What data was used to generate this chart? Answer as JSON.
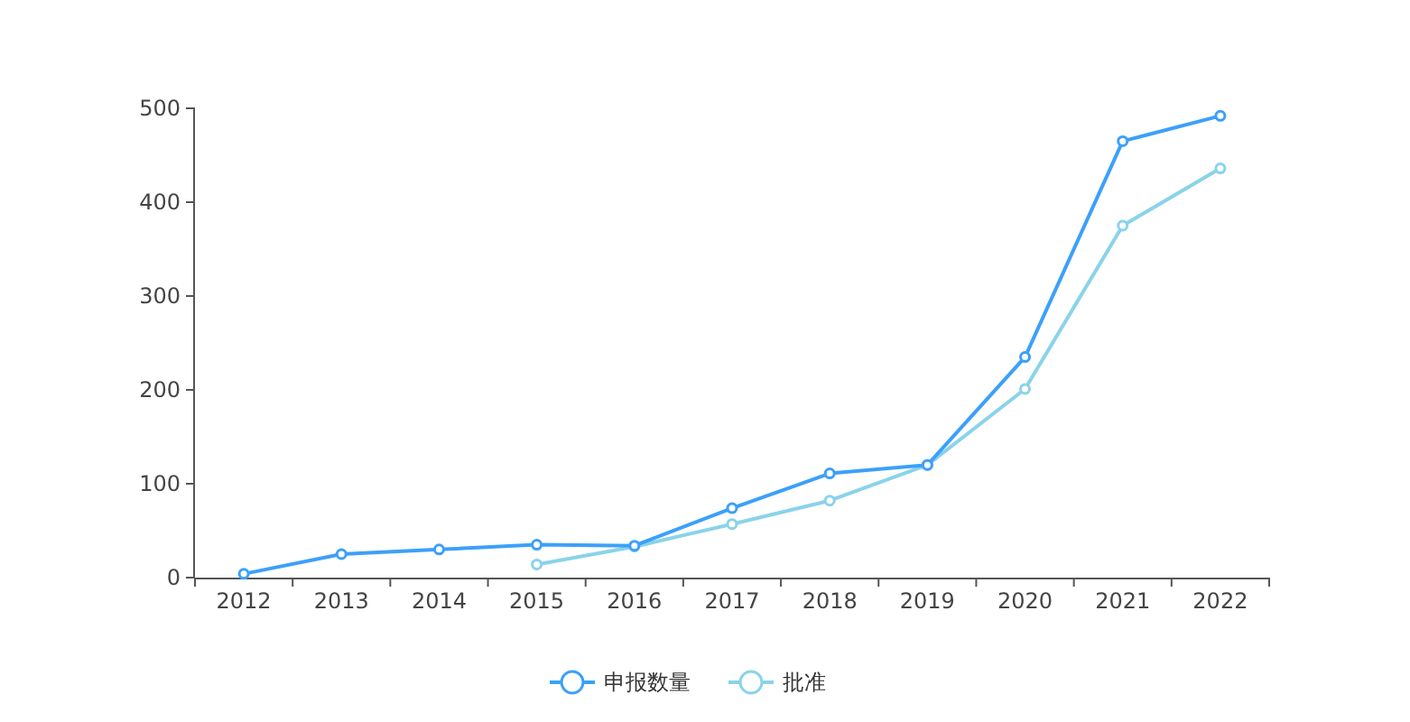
{
  "chart_data": {
    "type": "line",
    "categories": [
      "2012",
      "2013",
      "2014",
      "2015",
      "2016",
      "2017",
      "2018",
      "2019",
      "2020",
      "2021",
      "2022"
    ],
    "series": [
      {
        "name": "申报数量",
        "color": "#3ca0fa",
        "values": [
          4,
          25,
          30,
          35,
          34,
          74,
          111,
          120,
          235,
          465,
          492
        ]
      },
      {
        "name": "批准",
        "color": "#8ad3ea",
        "values": [
          null,
          null,
          null,
          14,
          33,
          57,
          82,
          120,
          201,
          375,
          436
        ]
      }
    ],
    "ylim": [
      0,
      500
    ],
    "yticks": [
      0,
      100,
      200,
      300,
      400,
      500
    ],
    "grid": false,
    "legend": "bottom",
    "marker": "circle",
    "line_style": "solid"
  }
}
